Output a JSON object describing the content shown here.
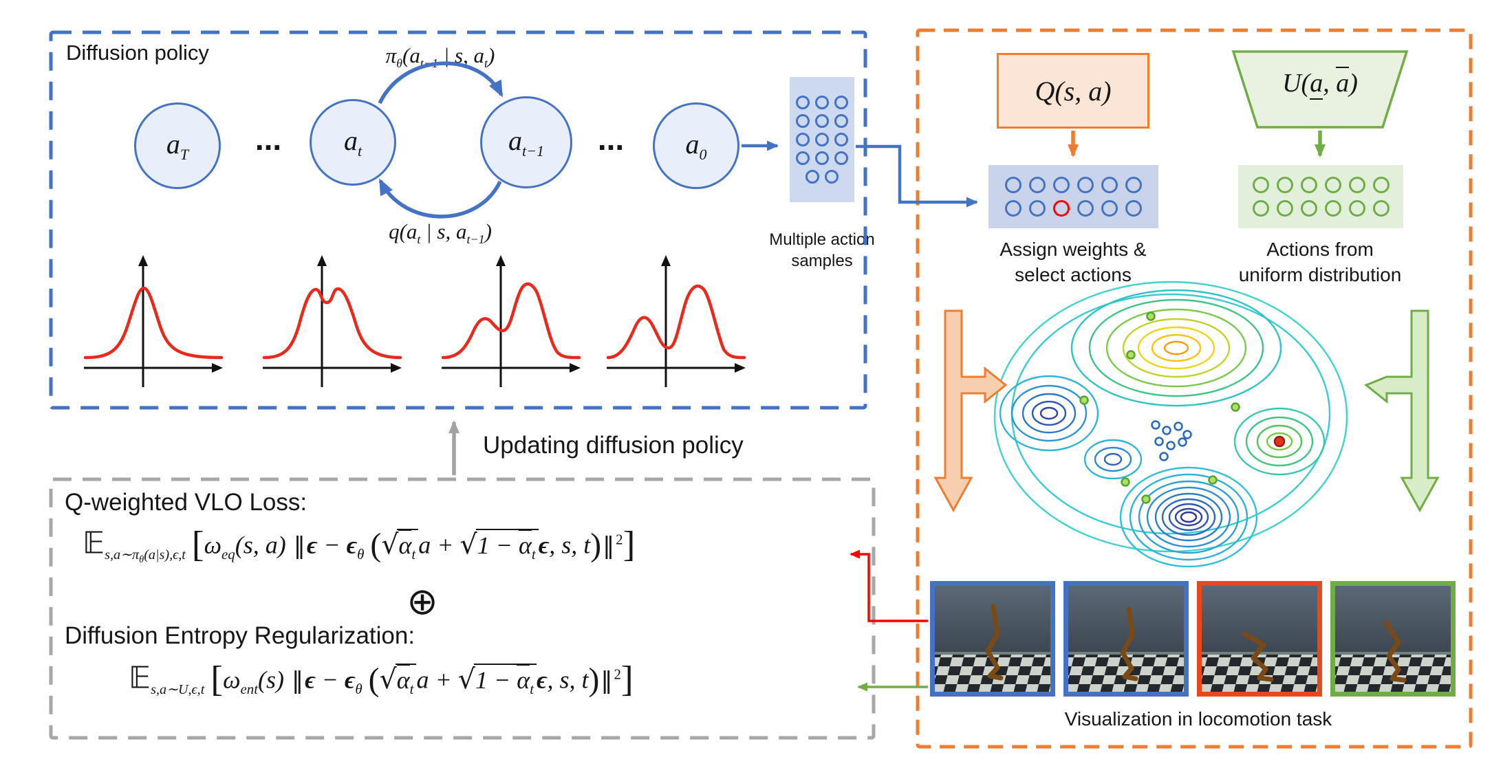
{
  "colors": {
    "blue": "#4472C4",
    "blue_light": "#ccd9ee",
    "orange": "#ED7D31",
    "orange_light": "#fbe5d6",
    "green": "#70AD47",
    "green_light": "#e2efda",
    "gray": "#a2a2a2",
    "red": "#ff0000",
    "frame_red": "#e8491c",
    "curve_red": "#e8291c"
  },
  "diffusion": {
    "title": "Diffusion policy",
    "nodes": [
      {
        "base": "a",
        "sub": "T"
      },
      {
        "base": "a",
        "sub": "t"
      },
      {
        "base": "a",
        "sub": "t−1"
      },
      {
        "base": "a",
        "sub": "0"
      }
    ],
    "dots": "...",
    "top_arrow": {
      "p1": "π",
      "p2": "θ",
      "p3": "(a",
      "p4": "t−1",
      "p5": " | s, a",
      "p6": "t",
      "p7": ")"
    },
    "bottom_arrow": {
      "p1": "q(a",
      "p2": "t",
      "p3": " | s, a",
      "p4": "t−1",
      "p5": ")"
    },
    "samples_label_1": "Multiple action",
    "samples_label_2": "samples"
  },
  "update_label": "Updating diffusion policy",
  "loss": {
    "q_title": "Q-weighted VLO Loss:",
    "plus": "⊕",
    "ent_title": "Diffusion Entropy Regularization:",
    "f1": {
      "E": "𝔼",
      "sub1": "s,a∼π",
      "sub_theta": "θ",
      "sub2": "(a|s),ϵ,t",
      "omega": "ω",
      "omega_sub": "eq",
      "omega_args": "(s, a)"
    },
    "f2": {
      "E": "𝔼",
      "sub1": "s,a∼U,ϵ,t",
      "omega": "ω",
      "omega_sub": "ent",
      "omega_args": "(s)"
    },
    "shared": {
      "lbrack": "[",
      "rbrack": "]",
      "norm": "‖",
      "eps": "ϵ",
      "minus": "−",
      "theta": "θ",
      "lparen": "(",
      "rparen": ")",
      "sqrt": "√",
      "alpha": "α",
      "sub_t": "t",
      "a_plus": "a +",
      "one_minus": "1 − ",
      "comma_st": ", s, t",
      "sq": "2"
    }
  },
  "right": {
    "q_label": "Q(s, a)",
    "u": {
      "p1": "U(",
      "a1": "a",
      "comma": ", ",
      "a2": "a",
      "p2": ")"
    },
    "assign_label_1": "Assign weights &",
    "assign_label_2": "select actions",
    "uniform_label_1": "Actions from",
    "uniform_label_2": "uniform distribution",
    "viz_label": "Visualization in locomotion task",
    "frames": [
      {
        "border": "#4472C4"
      },
      {
        "border": "#4472C4"
      },
      {
        "border": "#e8491c"
      },
      {
        "border": "#70AD47"
      }
    ]
  },
  "grids": {
    "samples": {
      "rows": [
        3,
        3,
        3,
        3,
        2
      ]
    },
    "assign": {
      "rows": [
        6,
        6
      ],
      "red": [
        1,
        2
      ]
    },
    "uniform": {
      "rows": [
        6,
        6
      ]
    }
  }
}
